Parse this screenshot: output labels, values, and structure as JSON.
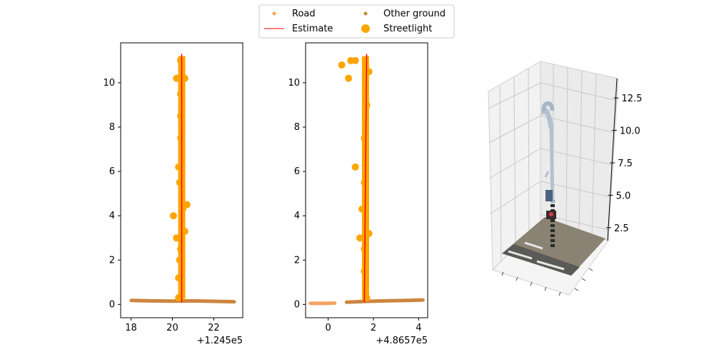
{
  "chart_data": [
    {
      "type": "scatter",
      "panel": "side-view-x",
      "xlim": [
        17.5,
        23.4
      ],
      "ylim": [
        -0.6,
        11.8
      ],
      "x_ticks": [
        "18",
        "20",
        "22"
      ],
      "y_ticks": [
        "0",
        "2",
        "4",
        "6",
        "8",
        "10"
      ],
      "offset_label": "+1.245e5",
      "grid": false,
      "series": [
        {
          "name": "Road",
          "color": "#f4a460",
          "points": []
        },
        {
          "name": "Other ground",
          "color": "#cd853f",
          "points": [
            [
              18.0,
              0.18
            ],
            [
              19.0,
              0.16
            ],
            [
              20.0,
              0.15
            ],
            [
              21.0,
              0.16
            ],
            [
              22.0,
              0.14
            ],
            [
              23.0,
              0.12
            ]
          ]
        },
        {
          "name": "Streetlight",
          "color": "#ffa500",
          "points": [
            [
              20.3,
              0.3
            ],
            [
              20.3,
              1.2
            ],
            [
              20.35,
              2.0
            ],
            [
              20.4,
              2.5
            ],
            [
              20.2,
              3.0
            ],
            [
              20.6,
              3.3
            ],
            [
              20.05,
              4.0
            ],
            [
              20.5,
              4.3
            ],
            [
              20.7,
              4.5
            ],
            [
              20.35,
              5.5
            ],
            [
              20.3,
              6.2
            ],
            [
              20.4,
              7.5
            ],
            [
              20.4,
              8.5
            ],
            [
              20.4,
              9.5
            ],
            [
              20.2,
              10.2
            ],
            [
              20.6,
              10.2
            ],
            [
              20.4,
              11.0
            ]
          ]
        }
      ],
      "estimate": {
        "name": "Estimate",
        "color": "#ff0000",
        "x": [
          20.45,
          20.45
        ],
        "y": [
          0.1,
          11.3
        ]
      }
    },
    {
      "type": "scatter",
      "panel": "side-view-y",
      "xlim": [
        -1.0,
        4.4
      ],
      "ylim": [
        -0.6,
        11.8
      ],
      "x_ticks": [
        "0",
        "2",
        "4"
      ],
      "y_ticks": [
        "0",
        "2",
        "4",
        "6",
        "8",
        "10"
      ],
      "offset_label": "+4.8657e5",
      "grid": false,
      "series": [
        {
          "name": "Road",
          "color": "#f4a460",
          "points": [
            [
              -0.8,
              0.05
            ],
            [
              -0.2,
              0.05
            ],
            [
              0.3,
              0.06
            ]
          ]
        },
        {
          "name": "Other ground",
          "color": "#cd853f",
          "points": [
            [
              0.8,
              0.1
            ],
            [
              1.5,
              0.13
            ],
            [
              2.5,
              0.16
            ],
            [
              3.5,
              0.18
            ],
            [
              4.2,
              0.2
            ]
          ]
        },
        {
          "name": "Streetlight",
          "color": "#ffa500",
          "points": [
            [
              1.7,
              0.3
            ],
            [
              1.6,
              1.5
            ],
            [
              1.6,
              2.5
            ],
            [
              1.4,
              3.0
            ],
            [
              1.8,
              3.2
            ],
            [
              1.5,
              4.3
            ],
            [
              1.6,
              5.5
            ],
            [
              1.2,
              6.2
            ],
            [
              1.6,
              7.5
            ],
            [
              1.7,
              9.0
            ],
            [
              1.8,
              10.5
            ],
            [
              1.2,
              11.0
            ],
            [
              0.6,
              10.8
            ],
            [
              0.9,
              10.2
            ],
            [
              1.0,
              11.0
            ]
          ]
        }
      ],
      "estimate": {
        "name": "Estimate",
        "color": "#ff0000",
        "x": [
          1.6,
          1.7
        ],
        "y": [
          0.1,
          11.3
        ]
      }
    },
    {
      "type": "scatter",
      "panel": "3d-view",
      "z_ticks": [
        "2.5",
        "5.0",
        "7.5",
        "10.0",
        "12.5"
      ],
      "zlim": [
        1.5,
        14.0
      ],
      "grid": true
    }
  ],
  "legend": {
    "placement": "top-center",
    "entries": [
      {
        "label": "Road",
        "color": "#f4a460",
        "marker": "small-dot"
      },
      {
        "label": "Other ground",
        "color": "#cd853f",
        "marker": "small-dot"
      },
      {
        "label": "Estimate",
        "color": "#ff0000",
        "marker": "line"
      },
      {
        "label": "Streetlight",
        "color": "#ffa500",
        "marker": "large-dot"
      }
    ]
  }
}
